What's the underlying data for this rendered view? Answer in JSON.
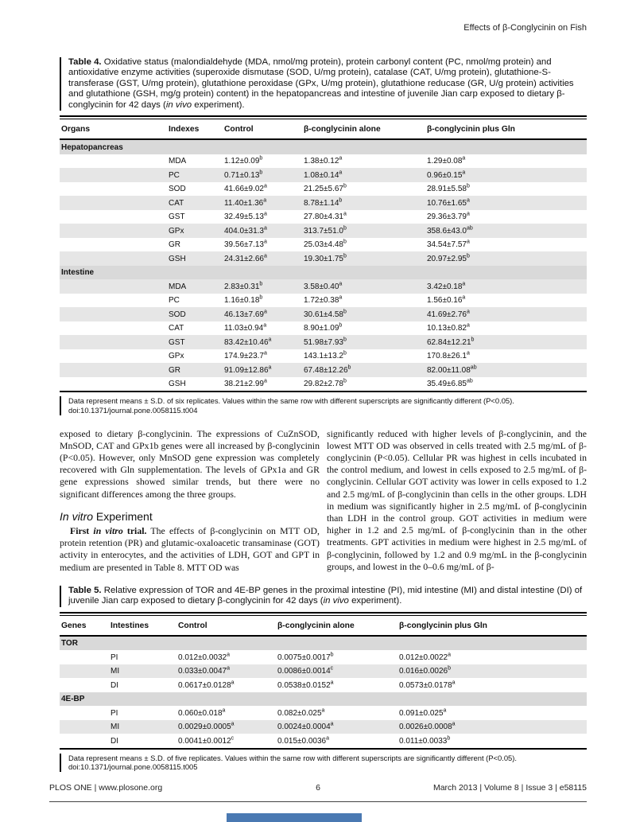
{
  "page": {
    "header_right": "Effects of β-Conglycinin on Fish",
    "footer": {
      "left": "PLOS ONE | www.plosone.org",
      "page_number": "6",
      "right": "March 2013 | Volume 8 | Issue 3 | e58115"
    }
  },
  "table4": {
    "caption_label": "Table 4.",
    "caption_pre": " Oxidative status (malondialdehyde (MDA, nmol/mg protein), protein carbonyl content (PC, nmol/mg protein) and antioxidative enzyme activities (superoxide dismutase (SOD, U/mg protein), catalase (CAT, U/mg protein), glutathione-S-transferase (GST, U/mg protein), glutathione peroxidase (GPx, U/mg protein), glutathione reducase (GR, U/g protein) activities and glutathione (GSH, mg/g protein) content) in the hepatopancreas and intestine of juvenile Jian carp exposed to dietary β-conglycinin for 42 days (",
    "caption_italic": "in vivo",
    "caption_post": " experiment).",
    "columns": [
      "Organs",
      "Indexes",
      "Control",
      "β-conglycinin alone",
      "β-conglycinin plus Gln"
    ],
    "rows": [
      {
        "type": "section",
        "label": "Hepatopancreas"
      },
      {
        "type": "data",
        "shaded": false,
        "cells": [
          [
            "",
            ""
          ],
          [
            "MDA",
            ""
          ],
          [
            "1.12±0.09",
            "b"
          ],
          [
            "1.38±0.12",
            "a"
          ],
          [
            "1.29±0.08",
            "a"
          ]
        ]
      },
      {
        "type": "data",
        "shaded": true,
        "cells": [
          [
            "",
            ""
          ],
          [
            "PC",
            ""
          ],
          [
            "0.71±0.13",
            "b"
          ],
          [
            "1.08±0.14",
            "a"
          ],
          [
            "0.96±0.15",
            "a"
          ]
        ]
      },
      {
        "type": "data",
        "shaded": false,
        "cells": [
          [
            "",
            ""
          ],
          [
            "SOD",
            ""
          ],
          [
            "41.66±9.02",
            "a"
          ],
          [
            "21.25±5.67",
            "b"
          ],
          [
            "28.91±5.58",
            "b"
          ]
        ]
      },
      {
        "type": "data",
        "shaded": true,
        "cells": [
          [
            "",
            ""
          ],
          [
            "CAT",
            ""
          ],
          [
            "11.40±1.36",
            "a"
          ],
          [
            "8.78±1.14",
            "b"
          ],
          [
            "10.76±1.65",
            "a"
          ]
        ]
      },
      {
        "type": "data",
        "shaded": false,
        "cells": [
          [
            "",
            ""
          ],
          [
            "GST",
            ""
          ],
          [
            "32.49±5.13",
            "a"
          ],
          [
            "27.80±4.31",
            "a"
          ],
          [
            "29.36±3.79",
            "a"
          ]
        ]
      },
      {
        "type": "data",
        "shaded": true,
        "cells": [
          [
            "",
            ""
          ],
          [
            "GPx",
            ""
          ],
          [
            "404.0±31.3",
            "a"
          ],
          [
            "313.7±51.0",
            "b"
          ],
          [
            "358.6±43.0",
            "ab"
          ]
        ]
      },
      {
        "type": "data",
        "shaded": false,
        "cells": [
          [
            "",
            ""
          ],
          [
            "GR",
            ""
          ],
          [
            "39.56±7.13",
            "a"
          ],
          [
            "25.03±4.48",
            "b"
          ],
          [
            "34.54±7.57",
            "a"
          ]
        ]
      },
      {
        "type": "data",
        "shaded": true,
        "cells": [
          [
            "",
            ""
          ],
          [
            "GSH",
            ""
          ],
          [
            "24.31±2.66",
            "a"
          ],
          [
            "19.30±1.75",
            "b"
          ],
          [
            "20.97±2.95",
            "b"
          ]
        ]
      },
      {
        "type": "section",
        "label": "Intestine"
      },
      {
        "type": "data",
        "shaded": true,
        "cells": [
          [
            "",
            ""
          ],
          [
            "MDA",
            ""
          ],
          [
            "2.83±0.31",
            "b"
          ],
          [
            "3.58±0.40",
            "a"
          ],
          [
            "3.42±0.18",
            "a"
          ]
        ]
      },
      {
        "type": "data",
        "shaded": false,
        "cells": [
          [
            "",
            ""
          ],
          [
            "PC",
            ""
          ],
          [
            "1.16±0.18",
            "b"
          ],
          [
            "1.72±0.38",
            "a"
          ],
          [
            "1.56±0.16",
            "a"
          ]
        ]
      },
      {
        "type": "data",
        "shaded": true,
        "cells": [
          [
            "",
            ""
          ],
          [
            "SOD",
            ""
          ],
          [
            "46.13±7.69",
            "a"
          ],
          [
            "30.61±4.58",
            "b"
          ],
          [
            "41.69±2.76",
            "a"
          ]
        ]
      },
      {
        "type": "data",
        "shaded": false,
        "cells": [
          [
            "",
            ""
          ],
          [
            "CAT",
            ""
          ],
          [
            "11.03±0.94",
            "a"
          ],
          [
            "8.90±1.09",
            "b"
          ],
          [
            "10.13±0.82",
            "a"
          ]
        ]
      },
      {
        "type": "data",
        "shaded": true,
        "cells": [
          [
            "",
            ""
          ],
          [
            "GST",
            ""
          ],
          [
            "83.42±10.46",
            "a"
          ],
          [
            "51.98±7.93",
            "b"
          ],
          [
            "62.84±12.21",
            "b"
          ]
        ]
      },
      {
        "type": "data",
        "shaded": false,
        "cells": [
          [
            "",
            ""
          ],
          [
            "GPx",
            ""
          ],
          [
            "174.9±23.7",
            "a"
          ],
          [
            "143.1±13.2",
            "b"
          ],
          [
            "170.8±26.1",
            "a"
          ]
        ]
      },
      {
        "type": "data",
        "shaded": true,
        "cells": [
          [
            "",
            ""
          ],
          [
            "GR",
            ""
          ],
          [
            "91.09±12.86",
            "a"
          ],
          [
            "67.48±12.26",
            "b"
          ],
          [
            "82.00±11.08",
            "ab"
          ]
        ]
      },
      {
        "type": "data",
        "shaded": false,
        "cells": [
          [
            "",
            ""
          ],
          [
            "GSH",
            ""
          ],
          [
            "38.21±2.99",
            "a"
          ],
          [
            "29.82±2.78",
            "b"
          ],
          [
            "35.49±6.85",
            "ab"
          ]
        ]
      }
    ],
    "footnote": "Data represent means ± S.D. of six replicates. Values within the same row with different superscripts are significantly different (P<0.05).",
    "doi": "doi:10.1371/journal.pone.0058115.t004"
  },
  "body": {
    "left": {
      "p1": "exposed to dietary β-conglycinin. The expressions of CuZnSOD, MnSOD, CAT and GPx1b genes were all increased by β-conglycinin (P<0.05). However, only MnSOD gene expression was completely recovered with Gln supplementation. The levels of GPx1a and GR gene expressions showed similar trends, but there were no significant differences among the three groups.",
      "heading_italic": "In vitro",
      "heading_rest": " Experiment",
      "p2_lead_1": "First ",
      "p2_lead_italic": "in vitro",
      "p2_lead_2": " trial.",
      "p2_rest": "  The effects of β-conglycinin on MTT OD, protein retention (PR) and glutamic-oxaloacetic transaminase (GOT) activity in enterocytes, and the activities of LDH, GOT and GPT in medium are presented in Table 8. MTT OD was"
    },
    "right": {
      "p1": "significantly reduced with higher levels of β-conglycinin, and the lowest MTT OD was observed in cells treated with 2.5 mg/mL of β-conglycinin (P<0.05). Cellular PR was highest in cells incubated in the control medium, and lowest in cells exposed to 2.5 mg/mL of β-conglycinin. Cellular GOT activity was lower in cells exposed to 1.2 and 2.5 mg/mL of β-conglycinin than cells in the other groups. LDH in medium was significantly higher in 2.5 mg/mL of β-conglycinin than LDH in the control group. GOT activities in medium were higher in 1.2 and 2.5 mg/mL of β-conglycinin than in the other treatments. GPT activities in medium were highest in 2.5 mg/mL of β-conglycinin, followed by 1.2 and 0.9 mg/mL in the β-conglycinin groups, and lowest in the 0–0.6 mg/mL of β-"
    }
  },
  "table5": {
    "caption_label": "Table 5.",
    "caption_pre": " Relative expression of TOR and 4E-BP genes in the proximal intestine (PI), mid intestine (MI) and distal intestine (DI) of juvenile Jian carp exposed to dietary β-conglycinin for 42 days (",
    "caption_italic": "in vivo",
    "caption_post": " experiment).",
    "columns": [
      "Genes",
      "Intestines",
      "Control",
      "β-conglycinin alone",
      "β-conglycinin plus Gln"
    ],
    "rows": [
      {
        "type": "section",
        "label": "TOR"
      },
      {
        "type": "data",
        "shaded": false,
        "cells": [
          [
            "",
            ""
          ],
          [
            "PI",
            ""
          ],
          [
            "0.012±0.0032",
            "a"
          ],
          [
            "0.0075±0.0017",
            "b"
          ],
          [
            "0.012±0.0022",
            "a"
          ]
        ]
      },
      {
        "type": "data",
        "shaded": true,
        "cells": [
          [
            "",
            ""
          ],
          [
            "MI",
            ""
          ],
          [
            "0.033±0.0047",
            "a"
          ],
          [
            "0.0086±0.0014",
            "c"
          ],
          [
            "0.016±0.0026",
            "b"
          ]
        ]
      },
      {
        "type": "data",
        "shaded": false,
        "cells": [
          [
            "",
            ""
          ],
          [
            "DI",
            ""
          ],
          [
            "0.0617±0.0128",
            "a"
          ],
          [
            "0.0538±0.0152",
            "a"
          ],
          [
            "0.0573±0.0178",
            "a"
          ]
        ]
      },
      {
        "type": "section",
        "label": "4E-BP"
      },
      {
        "type": "data",
        "shaded": false,
        "cells": [
          [
            "",
            ""
          ],
          [
            "PI",
            ""
          ],
          [
            "0.060±0.018",
            "a"
          ],
          [
            "0.082±0.025",
            "a"
          ],
          [
            "0.091±0.025",
            "a"
          ]
        ]
      },
      {
        "type": "data",
        "shaded": true,
        "cells": [
          [
            "",
            ""
          ],
          [
            "MI",
            ""
          ],
          [
            "0.0029±0.0005",
            "a"
          ],
          [
            "0.0024±0.0004",
            "a"
          ],
          [
            "0.0026±0.0008",
            "a"
          ]
        ]
      },
      {
        "type": "data",
        "shaded": false,
        "cells": [
          [
            "",
            ""
          ],
          [
            "DI",
            ""
          ],
          [
            "0.0041±0.0012",
            "c"
          ],
          [
            "0.015±0.0036",
            "a"
          ],
          [
            "0.011±0.0033",
            "b"
          ]
        ]
      }
    ],
    "footnote": "Data represent means ± S.D. of five replicates. Values within the same row with different superscripts are significantly different (P<0.05).",
    "doi": "doi:10.1371/journal.pone.0058115.t005"
  },
  "colors": {
    "section_band": "#d9d9d9",
    "shaded_row": "#e6e6e6",
    "rule": "#000000",
    "loadbar_blue": "#4a79b2"
  }
}
